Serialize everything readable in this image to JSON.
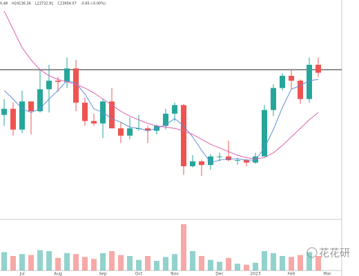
{
  "chart_data": {
    "type": "candlestick",
    "header": [
      "0.48",
      "H24136.36",
      "L23732.91",
      "C23954.07",
      "-0.65 (-0.00%)"
    ],
    "watermark": "花花研",
    "categories": [
      null,
      null,
      "Jul",
      null,
      null,
      null,
      "Aug",
      null,
      null,
      null,
      null,
      "Sep",
      null,
      null,
      null,
      "Oct",
      null,
      null,
      null,
      "Nov",
      null,
      null,
      null,
      null,
      "Dec",
      null,
      null,
      null,
      "2023",
      null,
      null,
      null,
      "Feb",
      null,
      null,
      null,
      "Mar"
    ],
    "open": [
      20500,
      21000,
      19300,
      21600,
      20800,
      22600,
      23300,
      23200,
      24300,
      21500,
      20000,
      19800,
      21600,
      19400,
      18800,
      19400,
      19400,
      19200,
      19600,
      20600,
      21300,
      16300,
      16700,
      16400,
      17100,
      17100,
      16800,
      16800,
      16600,
      17100,
      20900,
      22700,
      23700,
      23300,
      21800,
      24600,
      null
    ],
    "high": [
      21800,
      21500,
      22500,
      21600,
      24200,
      24600,
      23600,
      25200,
      25000,
      21900,
      20600,
      21800,
      22700,
      19900,
      20300,
      20500,
      19600,
      19700,
      21000,
      21500,
      21400,
      17200,
      16800,
      17300,
      17400,
      18400,
      17000,
      16900,
      17400,
      21300,
      23000,
      23900,
      24200,
      23400,
      25200,
      25200,
      null
    ],
    "low": [
      19600,
      18800,
      19000,
      18900,
      20700,
      20700,
      22400,
      22700,
      20800,
      19600,
      19600,
      18600,
      19400,
      18200,
      18500,
      19200,
      18200,
      18900,
      19300,
      20000,
      15600,
      16200,
      15500,
      16000,
      16700,
      16700,
      16400,
      16300,
      16500,
      17100,
      20400,
      22500,
      22600,
      21400,
      21500,
      23600,
      null
    ],
    "close": [
      21000,
      19300,
      21600,
      20800,
      22600,
      23300,
      23200,
      24300,
      21500,
      20000,
      19800,
      21600,
      19400,
      18800,
      19400,
      19400,
      19200,
      19600,
      20600,
      21300,
      16300,
      16700,
      16400,
      17100,
      17100,
      16800,
      16800,
      16600,
      17100,
      20900,
      22700,
      23700,
      23300,
      21800,
      24600,
      23950,
      null
    ],
    "volume": [
      38,
      30,
      34,
      32,
      42,
      40,
      26,
      36,
      34,
      28,
      24,
      36,
      40,
      32,
      30,
      22,
      30,
      20,
      28,
      34,
      96,
      40,
      30,
      22,
      18,
      26,
      14,
      12,
      16,
      40,
      36,
      30,
      28,
      32,
      38,
      30,
      null
    ],
    "lines": [
      {
        "color": "#5b8fd9",
        "values": [
          22500,
          21800,
          21000,
          20700,
          21000,
          21800,
          22500,
          23300,
          23100,
          22200,
          21000,
          20700,
          20200,
          19900,
          19500,
          19400,
          19200,
          19400,
          19700,
          20200,
          19600,
          18700,
          17600,
          16600,
          16800,
          16900,
          16900,
          16800,
          16800,
          17800,
          19300,
          21100,
          22600,
          22900,
          23300,
          23400,
          null
        ]
      },
      {
        "color": "#e05fb0",
        "values": [
          29000,
          27500,
          26000,
          25000,
          24200,
          23700,
          23400,
          23200,
          23000,
          22700,
          22300,
          21800,
          21300,
          20800,
          20400,
          20100,
          19800,
          19600,
          19500,
          19400,
          19200,
          18900,
          18500,
          18100,
          17800,
          17500,
          17200,
          17000,
          16900,
          17000,
          17400,
          18000,
          18700,
          19400,
          20100,
          20700,
          null
        ]
      }
    ],
    "hline": 24200,
    "up_color": "#26a69a",
    "down_color": "#ef5350",
    "ylim": [
      12400,
      29900
    ],
    "volume_lim": [
      0,
      100
    ]
  }
}
